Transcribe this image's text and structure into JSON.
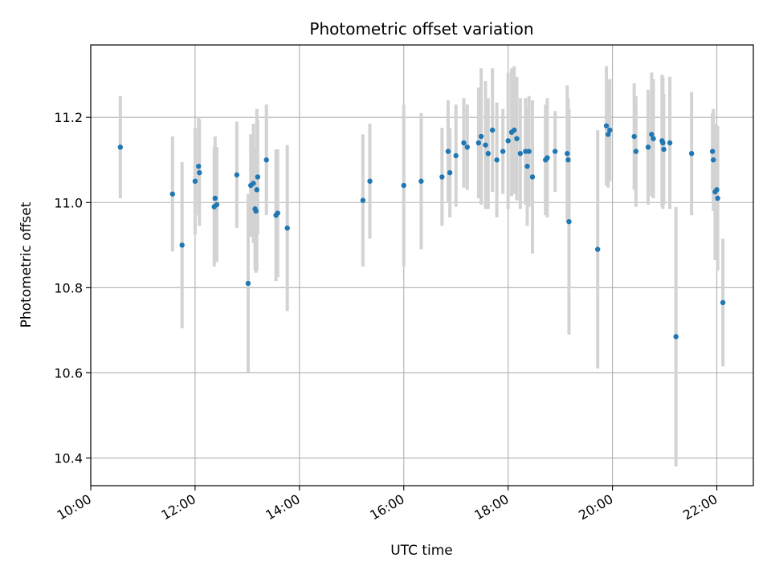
{
  "chart_data": {
    "type": "scatter",
    "title": "Photometric offset variation",
    "xlabel": "UTC time",
    "ylabel": "Photometric offset",
    "xlim": [
      "10:00",
      "22:42"
    ],
    "ylim": [
      10.335,
      11.37
    ],
    "x_ticks": [
      "10:00",
      "12:00",
      "14:00",
      "16:00",
      "18:00",
      "20:00",
      "22:00"
    ],
    "y_ticks": [
      "10.4",
      "10.6",
      "10.8",
      "11.0",
      "11.2"
    ],
    "grid": true,
    "point_color": "#1f77b4",
    "errorbar_color": "#d3d3d3",
    "series": [
      {
        "x": [
          "10:34",
          "11:34",
          "11:45",
          "12:00",
          "12:04",
          "12:05",
          "12:22",
          "12:23",
          "12:25",
          "12:48",
          "13:01",
          "13:04",
          "13:07",
          "13:09",
          "13:10",
          "13:11",
          "13:12",
          "13:22",
          "13:33",
          "13:35",
          "13:46",
          "15:13",
          "15:21",
          "16:00",
          "16:20",
          "16:44",
          "16:51",
          "16:53",
          "17:00",
          "17:09",
          "17:13",
          "17:26",
          "17:29",
          "17:34",
          "17:37",
          "17:42",
          "17:47",
          "17:54",
          "18:00",
          "18:04",
          "18:07",
          "18:10",
          "18:14",
          "18:20",
          "18:22",
          "18:24",
          "18:28",
          "18:43",
          "18:45",
          "18:54",
          "19:08",
          "19:09",
          "19:10",
          "19:43",
          "19:53",
          "19:55",
          "19:57",
          "20:25",
          "20:27",
          "20:41",
          "20:45",
          "20:47",
          "20:57",
          "20:58",
          "20:59",
          "21:06",
          "21:13",
          "21:31",
          "21:55",
          "21:56",
          "21:58",
          "22:00",
          "22:01",
          "22:07"
        ],
        "y": [
          11.13,
          11.02,
          10.9,
          11.05,
          11.085,
          11.07,
          10.99,
          11.01,
          10.995,
          11.065,
          10.81,
          11.04,
          11.045,
          10.985,
          10.98,
          11.03,
          11.06,
          11.1,
          10.97,
          10.975,
          10.94,
          11.005,
          11.05,
          11.04,
          11.05,
          11.06,
          11.12,
          11.07,
          11.11,
          11.14,
          11.13,
          11.14,
          11.155,
          11.135,
          11.115,
          11.17,
          11.1,
          11.12,
          11.145,
          11.165,
          11.17,
          11.15,
          11.115,
          11.12,
          11.085,
          11.12,
          11.06,
          11.1,
          11.105,
          11.12,
          11.115,
          11.1,
          10.955,
          10.89,
          11.18,
          11.16,
          11.17,
          11.155,
          11.12,
          11.13,
          11.16,
          11.15,
          11.145,
          11.14,
          11.125,
          11.14,
          10.685,
          11.115,
          11.12,
          11.1,
          11.025,
          11.03,
          11.01,
          10.765
        ],
        "yerr": [
          0.12,
          0.135,
          0.195,
          0.125,
          0.115,
          0.125,
          0.14,
          0.145,
          0.135,
          0.125,
          0.21,
          0.12,
          0.14,
          0.145,
          0.145,
          0.19,
          0.135,
          0.13,
          0.155,
          0.15,
          0.195,
          0.155,
          0.135,
          0.19,
          0.16,
          0.115,
          0.12,
          0.105,
          0.12,
          0.105,
          0.1,
          0.13,
          0.16,
          0.15,
          0.13,
          0.145,
          0.135,
          0.1,
          0.16,
          0.15,
          0.15,
          0.145,
          0.13,
          0.125,
          0.14,
          0.13,
          0.18,
          0.13,
          0.14,
          0.095,
          0.16,
          0.145,
          0.265,
          0.28,
          0.14,
          0.125,
          0.12,
          0.125,
          0.13,
          0.135,
          0.145,
          0.14,
          0.155,
          0.155,
          0.13,
          0.155,
          0.305,
          0.145,
          0.09,
          0.12,
          0.16,
          0.15,
          0.17,
          0.15
        ]
      }
    ]
  }
}
